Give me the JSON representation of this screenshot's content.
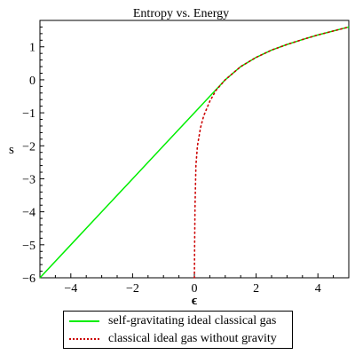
{
  "chart_data": {
    "type": "line",
    "title": "Entropy vs. Energy",
    "xlabel": "ϵ",
    "ylabel": "s",
    "xlim": [
      -5,
      5
    ],
    "ylim": [
      -6,
      1.8
    ],
    "x_ticks": [
      -4,
      -2,
      0,
      2,
      4
    ],
    "x_tick_labels": [
      "−4",
      "−2",
      "0",
      "2",
      "4"
    ],
    "y_ticks": [
      -6,
      -5,
      -4,
      -3,
      -2,
      -1,
      0,
      1
    ],
    "y_tick_labels": [
      "−6",
      "−5",
      "−4",
      "−3",
      "−2",
      "−1",
      "0",
      "1"
    ],
    "grid": false,
    "legend_position": "bottom",
    "series": [
      {
        "name": "self-gravitating ideal classical gas",
        "style": "solid",
        "color": "#00ee00",
        "x": [
          -5,
          -4,
          -3,
          -2,
          -1,
          0,
          0.5,
          0.8,
          1.0,
          1.2,
          1.5,
          2.0,
          2.5,
          3.0,
          3.5,
          4.0,
          4.5,
          5.0
        ],
        "y": [
          -6.0,
          -5.0,
          -4.0,
          -3.0,
          -2.0,
          -1.0,
          -0.5,
          -0.2,
          0.0,
          0.16,
          0.4,
          0.68,
          0.9,
          1.07,
          1.22,
          1.36,
          1.48,
          1.6
        ]
      },
      {
        "name": "classical ideal gas without gravity",
        "style": "dotted",
        "color": "#cc0000",
        "x": [
          0.001,
          0.005,
          0.01,
          0.02,
          0.05,
          0.1,
          0.2,
          0.3,
          0.5,
          0.7,
          1.0,
          1.2,
          1.5,
          2.0,
          2.5,
          3.0,
          3.5,
          4.0,
          4.5,
          5.0
        ],
        "y": [
          -6.0,
          -5.5,
          -4.9,
          -3.9,
          -2.6,
          -2.0,
          -1.45,
          -1.1,
          -0.65,
          -0.32,
          0.0,
          0.16,
          0.4,
          0.68,
          0.9,
          1.07,
          1.22,
          1.36,
          1.48,
          1.6
        ]
      }
    ]
  }
}
